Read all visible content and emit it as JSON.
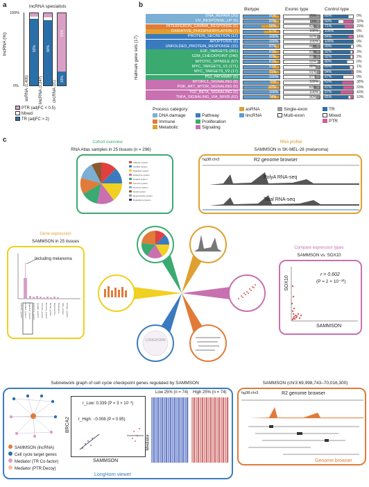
{
  "panel_a": {
    "label": "a",
    "title": "lncRNA specialists",
    "ylabel": "lncRNA (%)",
    "yticks": [
      "100%",
      "0%"
    ],
    "bars": [
      {
        "name": "asRNA",
        "n": "(1,405)",
        "tr": 92,
        "mixed": 3,
        "ptr": 5,
        "tr_label": "92%"
      },
      {
        "name": "lincRNA",
        "n": "(2,247)",
        "tr": 90,
        "mixed": 4,
        "ptr": 6,
        "tr_label": "90%"
      },
      {
        "name": "circRNA",
        "n": "(21)",
        "tr": 19,
        "mixed": 0,
        "ptr": 81,
        "tr_label": "19%",
        "ptr_label": "81%"
      }
    ],
    "legend": [
      {
        "label": "PTR (adjFC < 0.5)",
        "color": "#d9a0c6"
      },
      {
        "label": "Mixed",
        "color": "#ffffff"
      },
      {
        "label": "TR (adjFC > 2)",
        "color": "#2b6fa8"
      }
    ],
    "colors": {
      "tr": "#2b6fa8",
      "mixed": "#ffffff",
      "ptr": "#d9a0c6"
    }
  },
  "panel_b": {
    "label": "b",
    "ylabel": "Hallmark gene sets (17)",
    "col_headers": [
      "Biotype",
      "Exonic type",
      "Control type"
    ],
    "pathways": [
      {
        "name": "DNA_REPAIR (20)",
        "cat": "dna",
        "bio": "80%",
        "exon": "70%",
        "ctrl": "85%",
        "ptr": "0%"
      },
      {
        "name": "UV_RESPONSE_UP (6)",
        "cat": "dna",
        "bio": "83%",
        "exon": "73%",
        "ctrl": "50%",
        "ptr": "33%"
      },
      {
        "name": "INTERFERON_GAMMA_RESPONSE (6)",
        "cat": "immune",
        "bio": "50%",
        "exon": "83%",
        "ctrl": "71%",
        "ptr": "29%"
      },
      {
        "name": "OXIDATIVE_PHOSPHORYLATION (7)",
        "cat": "metabolic",
        "bio": "57%",
        "exon": "100%",
        "ctrl": "100%",
        "ptr": "0%"
      },
      {
        "name": "PROTEIN_SECRETION (12)",
        "cat": "pathway",
        "bio": "100%",
        "exon": "92%",
        "ctrl": "84%",
        "ptr": "16%"
      },
      {
        "name": "APOPTOSIS (6)",
        "cat": "pathway",
        "bio": "100%",
        "exon": "100%",
        "ctrl": "100%",
        "ptr": "0%"
      },
      {
        "name": "UNFOLDED_PROTEIN_RESPONSE (15)",
        "cat": "pathway",
        "bio": "87%",
        "exon": "80%",
        "ctrl": "93%",
        "ptr": "0%"
      },
      {
        "name": "E2F_TARGETS (261)",
        "cat": "prolif",
        "bio": "81%",
        "exon": "82%",
        "ctrl": "92%",
        "ptr": "3%"
      },
      {
        "name": "G2M_CHECKPOINT (240)",
        "cat": "prolif",
        "bio": "82%",
        "exon": "82%",
        "ctrl": "92%",
        "ptr": "2%"
      },
      {
        "name": "MITOTIC_SPINDLE (67)",
        "cat": "prolif",
        "bio": "81%",
        "exon": "93%",
        "ctrl": "80%",
        "ptr": "0%"
      },
      {
        "name": "MYC_TARGETS_V1 (171)",
        "cat": "prolif",
        "bio": "81%",
        "exon": "88%",
        "ctrl": "89%",
        "ptr": "1%"
      },
      {
        "name": "MYC_TARGETS_V2 (17)",
        "cat": "prolif",
        "bio": "71%",
        "exon": "91%",
        "ctrl": "94%",
        "ptr": "6%"
      },
      {
        "name": "P53_PATHWAY (6)",
        "cat": "prolif",
        "bio": "100%",
        "exon": "87%",
        "ctrl": "67%",
        "ptr": "0%"
      },
      {
        "name": "MTORC1_SIGNALING (8)",
        "cat": "signal",
        "bio": "75%",
        "exon": "100%",
        "ctrl": "63%",
        "ptr": "38%"
      },
      {
        "name": "PI3K_AKT_MTOR_SIGNALING (6)",
        "cat": "signal",
        "bio": "67%",
        "exon": "83%",
        "ctrl": "67%",
        "ptr": "33%"
      },
      {
        "name": "TGF_BETA_SIGNALING (6)",
        "cat": "signal",
        "bio": "100%",
        "exon": "100%",
        "ctrl": "57%",
        "ptr": "43%"
      },
      {
        "name": "TNFA_SIGNALING_VIA_NFKB (62)",
        "cat": "signal",
        "bio": "74%",
        "exon": "90%",
        "ctrl": "85%",
        "ptr": "10%"
      }
    ],
    "cat_colors": {
      "dna": "#7bafd4",
      "immune": "#e07b39",
      "metabolic": "#e0a030",
      "pathway": "#3a7bbf",
      "prolif": "#3aaa70",
      "signal": "#c870b0"
    },
    "legend_title": "Process category:",
    "legend_cats": [
      {
        "label": "DNA damage",
        "color": "#7bafd4"
      },
      {
        "label": "Pathway",
        "color": "#3a7bbf"
      },
      {
        "label": "Immune",
        "color": "#e07b39"
      },
      {
        "label": "Proliferation",
        "color": "#3aaa70"
      },
      {
        "label": "Metabolic",
        "color": "#e0a030"
      },
      {
        "label": "Signaling",
        "color": "#c870b0"
      }
    ],
    "legend_types": [
      {
        "label": "asRNA",
        "color": "#e0a030"
      },
      {
        "label": "lincRNA",
        "color": "#5a9bd4"
      },
      {
        "label": "Single-exon",
        "color": "#999999"
      },
      {
        "label": "Multi-exon",
        "color": "#ffffff"
      },
      {
        "label": "TR",
        "color": "#2b6fa8"
      },
      {
        "label": "Mixed",
        "color": "#ffffff"
      },
      {
        "label": "PTR",
        "color": "#d45a9a"
      }
    ]
  },
  "panel_c": {
    "label": "c",
    "cohort": {
      "header": "Cohort overview",
      "title": "RNA Atlas samples in 25 tissues (n = 296)"
    },
    "profiler": {
      "header": "RNA profiler",
      "title": "SAMMSON in SK-MEL-28 (melanoma)",
      "coord": "hg38:chr3",
      "browser_title": "R2 genome browser",
      "track1": "PolyA RNA-seq",
      "track2": "Total RNA-seq"
    },
    "gene_expr": {
      "header": "Gene expression",
      "title": "SAMMSON in 25 tissues",
      "annotation": "Including melanoma",
      "ylabel": "TPM"
    },
    "compare": {
      "header": "Compare expression types",
      "title": "SAMMSON vs. SOX10",
      "r": "r = 0.602",
      "p": "(P = 2 × 10⁻³⁰)",
      "xlabel": "SAMMSON",
      "ylabel": "SOX10"
    },
    "center_label": "LONGHORN",
    "subnetwork": {
      "title": "Subnetwork graph of cell cycle checkpoint genes regulated by SAMMSON",
      "r_low": "r_Low: 0.339 (P = 3 × 10⁻³)",
      "r_high": "r_High: −0.008 (P = 0.95)",
      "ylabel": "BRCA2",
      "xlabel": "SAMMSON",
      "low_label": "Low 25% (n = 74)",
      "high_label": "High 25% (n = 74)",
      "mediator": "Mediator",
      "legend": [
        {
          "label": "SAMMSON (lncRNA)",
          "color": "#e07b39"
        },
        {
          "label": "Cell cycle target genes",
          "color": "#2b6fa8"
        },
        {
          "label": "Mediator (TR Co-factor)",
          "color": "#d9a0c6"
        },
        {
          "label": "Mediator (PTR:Decoy)",
          "color": "#f0c0a0"
        }
      ],
      "footer": "LongHorn viewer"
    },
    "genome": {
      "title": "SAMMSON (chr3:69,998,743–70,016,300)",
      "coord": "hg38:chr3",
      "browser_title": "R2 genome browser",
      "footer": "Genome browser"
    }
  }
}
